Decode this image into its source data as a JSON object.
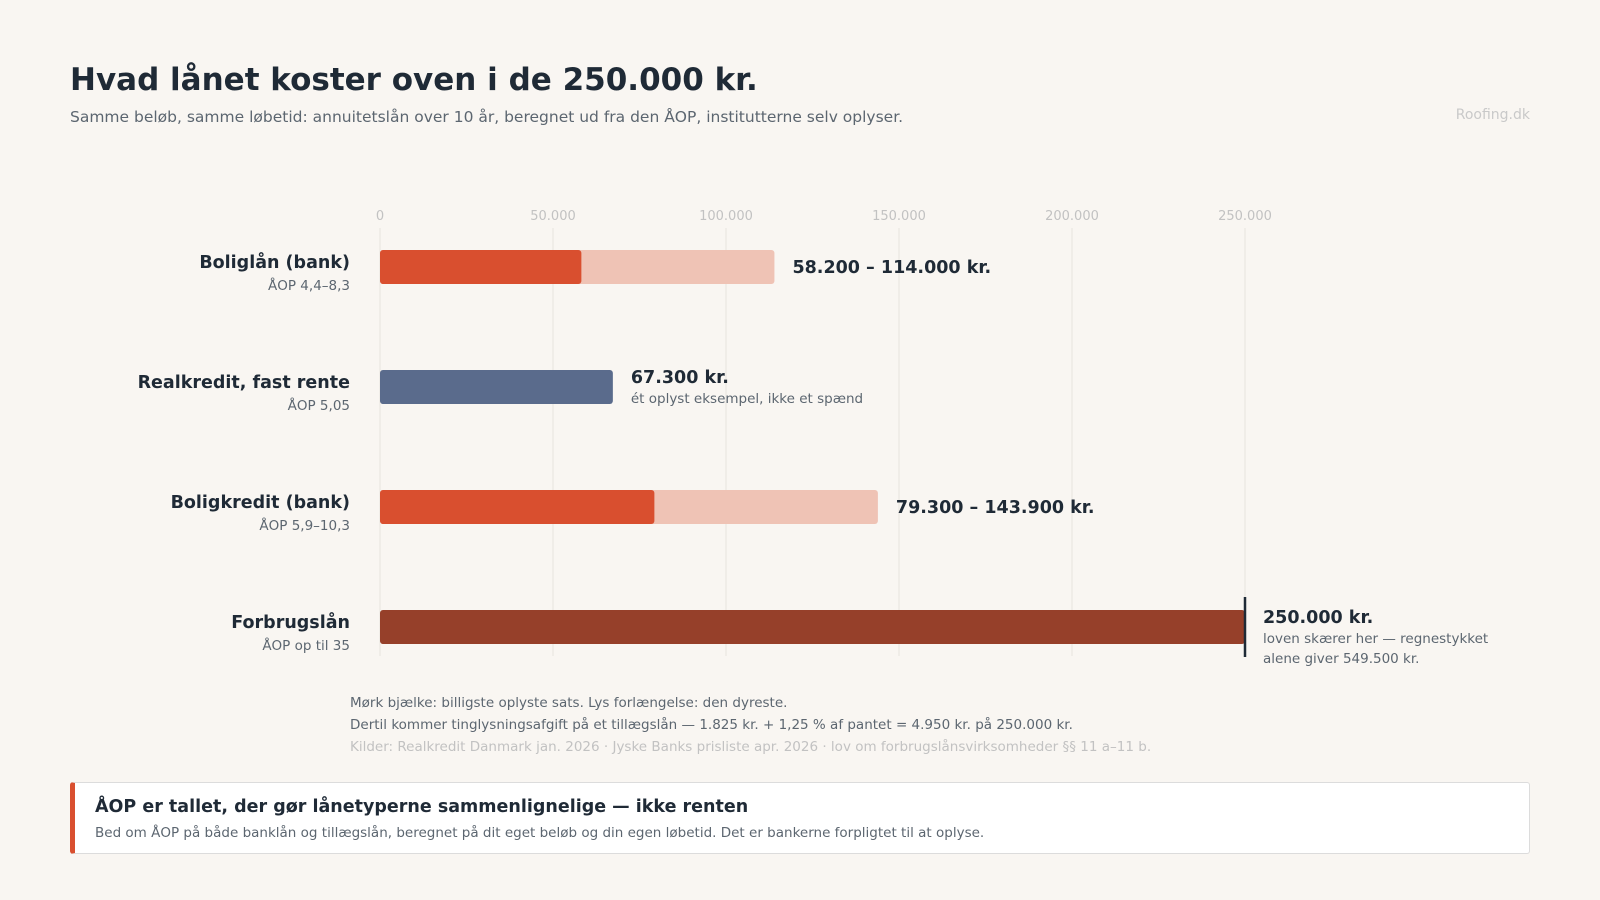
{
  "header": {
    "title": "Hvad lånet koster oven i de 250.000 kr.",
    "subtitle": "Samme beløb, samme løbetid: annuitetslån over 10 år, beregnet ud fra den ÅOP, institutterne selv oplyser.",
    "brand": "Roofing.dk"
  },
  "chart_data": {
    "type": "bar",
    "orientation": "horizontal",
    "title": "Hvad lånet koster oven i de 250.000 kr.",
    "subtitle": "Samme beløb, samme løbetid: annuitetslån over 10 år, beregnet ud fra den ÅOP, institutterne selv oplyser.",
    "xlim": [
      0,
      250000
    ],
    "x_ticks": [
      0,
      50000,
      100000,
      150000,
      200000,
      250000
    ],
    "x_tick_labels": [
      "0",
      "50.000",
      "100.000",
      "150.000",
      "200.000",
      "250.000"
    ],
    "grid": true,
    "categories": [
      "Boliglån (bank)",
      "Realkredit, fast rente",
      "Boligkredit (bank)",
      "Forbrugslån"
    ],
    "sublabels": [
      "ÅOP 4,4–8,3",
      "ÅOP 5,05",
      "ÅOP 5,9–10,3",
      "ÅOP op til 35"
    ],
    "series": [
      {
        "name": "Mørk bjælke: billigste oplyste sats",
        "values": [
          58200,
          67300,
          79300,
          250000
        ]
      },
      {
        "name": "Lys forlængelse: den dyreste",
        "values": [
          114000,
          67300,
          143900,
          250000
        ]
      }
    ],
    "bar_colors": [
      "#d94f2f",
      "#5a6b8c",
      "#d94f2f",
      "#96402a"
    ],
    "extension_color": "#efc3b5",
    "value_labels": [
      "58.200 – 114.000 kr.",
      "67.300 kr.",
      "79.300 – 143.900 kr.",
      "250.000 kr."
    ],
    "value_notes": [
      [],
      [
        "ét oplyst eksempel, ikke et spænd"
      ],
      [],
      [
        "loven skærer her — regnestykket",
        "alene giver 549.500 kr."
      ]
    ],
    "cap_value": 250000
  },
  "notes": {
    "line1": "Mørk bjælke: billigste oplyste sats. Lys forlængelse: den dyreste.",
    "line2": "Dertil kommer tinglysningsafgift på et tillægslån — 1.825 kr. + 1,25 % af pantet = 4.950 kr. på 250.000 kr.",
    "sources": "Kilder: Realkredit Danmark jan. 2026 · Jyske Banks prisliste apr. 2026 · lov om forbrugslånsvirksomheder §§ 11 a–11 b."
  },
  "callout": {
    "heading": "ÅOP er tallet, der gør lånetyperne sammenlignelige — ikke renten",
    "body": "Bed om ÅOP på både banklån og tillægslån, beregnet på dit eget beløb og din egen løbetid. Det er bankerne forpligtet til at oplyse."
  }
}
